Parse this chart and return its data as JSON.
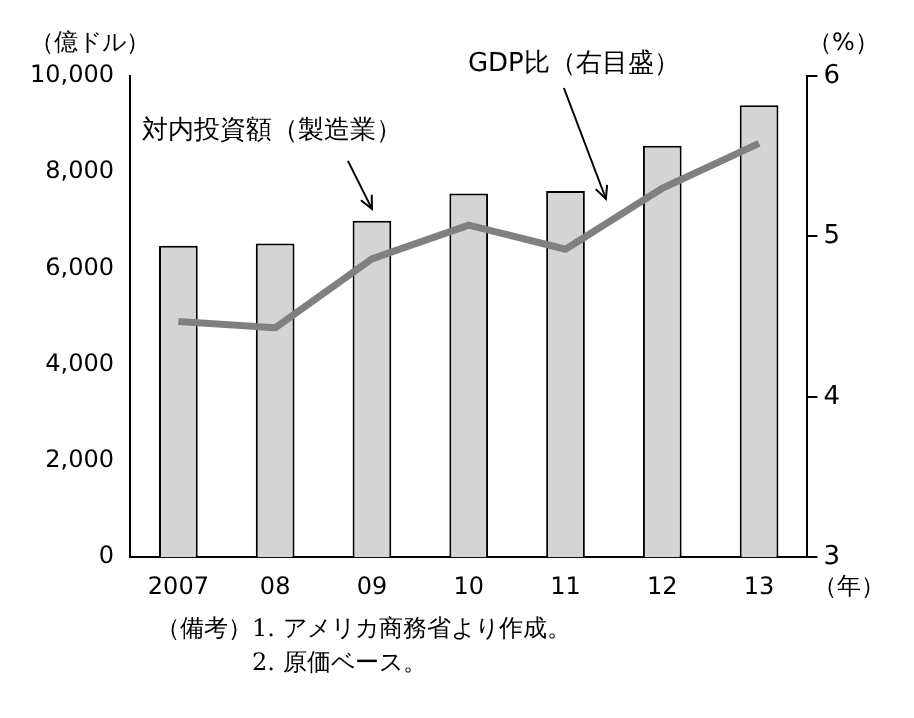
{
  "chart_data": {
    "type": "bar",
    "categories": [
      "2007",
      "08",
      "09",
      "10",
      "11",
      "12",
      "13"
    ],
    "series": [
      {
        "name": "対内投資額（製造業）",
        "color": "#d4d4d4",
        "values": [
          6470,
          6520,
          6990,
          7560,
          7610,
          8550,
          9390
        ]
      },
      {
        "name": "GDP比（右目盛）",
        "type": "line",
        "axis": "y2",
        "color": "#808080",
        "values": [
          4.47,
          4.43,
          4.86,
          5.07,
          4.92,
          5.3,
          5.58
        ]
      }
    ],
    "ylabel": "（億ドル）",
    "y2label": "（%）",
    "xlabel": "（年）",
    "ylim": [
      0,
      10000
    ],
    "yticks": [
      0,
      {
        "value": 2000,
        "label": "2,000"
      },
      {
        "value": 4000,
        "label": "4,000"
      },
      {
        "value": 6000,
        "label": "6,000"
      },
      {
        "value": 8000,
        "label": "8,000"
      },
      {
        "value": 10000,
        "label": "10,000"
      }
    ],
    "y2lim": [
      3,
      6
    ],
    "y2ticks": [
      3,
      4,
      5,
      6
    ],
    "grid": false,
    "legend": false,
    "marker": "none",
    "line_style": "solid",
    "annotations": [
      "（備考）1. アメリカ商務省より作成。",
      "2. 原価ベース。"
    ]
  }
}
